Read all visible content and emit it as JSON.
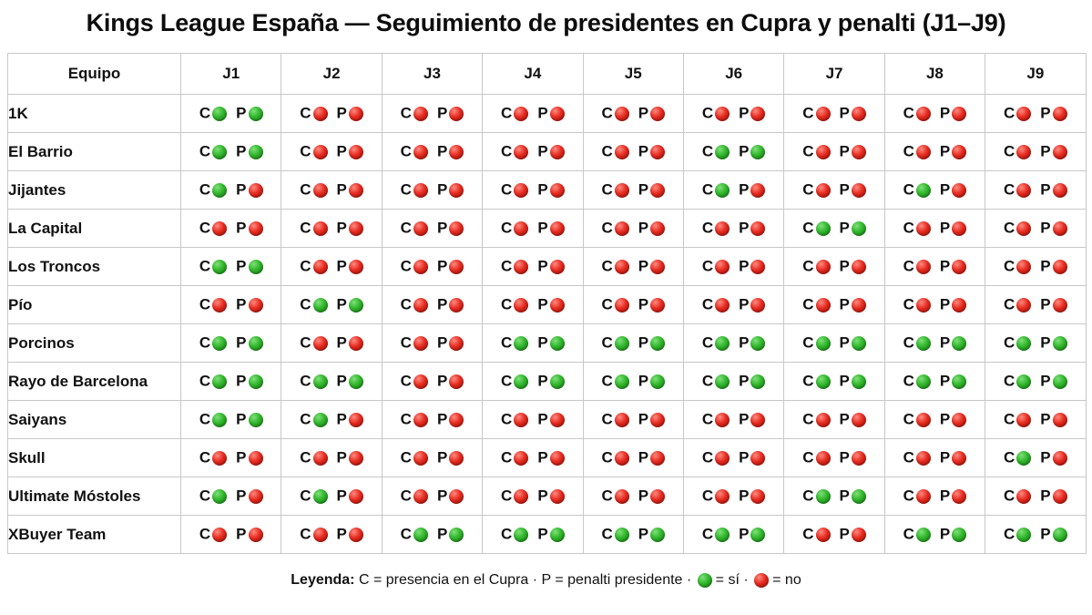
{
  "title": "Kings League España — Seguimiento de presidentes en Cupra y penalti (J1–J9)",
  "table": {
    "team_header": "Equipo",
    "rounds": [
      "J1",
      "J2",
      "J3",
      "J4",
      "J5",
      "J6",
      "J7",
      "J8",
      "J9"
    ],
    "cupra_letter": "C",
    "penalty_letter": "P",
    "rows": [
      {
        "team": "1K",
        "c": [
          1,
          0,
          0,
          0,
          0,
          0,
          0,
          0,
          0
        ],
        "p": [
          1,
          0,
          0,
          0,
          0,
          0,
          0,
          0,
          0
        ]
      },
      {
        "team": "El Barrio",
        "c": [
          1,
          0,
          0,
          0,
          0,
          1,
          0,
          0,
          0
        ],
        "p": [
          1,
          0,
          0,
          0,
          0,
          1,
          0,
          0,
          0
        ]
      },
      {
        "team": "Jijantes",
        "c": [
          1,
          0,
          0,
          0,
          0,
          1,
          0,
          1,
          0
        ],
        "p": [
          0,
          0,
          0,
          0,
          0,
          0,
          0,
          0,
          0
        ]
      },
      {
        "team": "La Capital",
        "c": [
          0,
          0,
          0,
          0,
          0,
          0,
          1,
          0,
          0
        ],
        "p": [
          0,
          0,
          0,
          0,
          0,
          0,
          1,
          0,
          0
        ]
      },
      {
        "team": "Los Troncos",
        "c": [
          1,
          0,
          0,
          0,
          0,
          0,
          0,
          0,
          0
        ],
        "p": [
          1,
          0,
          0,
          0,
          0,
          0,
          0,
          0,
          0
        ]
      },
      {
        "team": "Pío",
        "c": [
          0,
          1,
          0,
          0,
          0,
          0,
          0,
          0,
          0
        ],
        "p": [
          0,
          1,
          0,
          0,
          0,
          0,
          0,
          0,
          0
        ]
      },
      {
        "team": "Porcinos",
        "c": [
          1,
          0,
          0,
          1,
          1,
          1,
          1,
          1,
          1
        ],
        "p": [
          1,
          0,
          0,
          1,
          1,
          1,
          1,
          1,
          1
        ]
      },
      {
        "team": "Rayo de Barcelona",
        "c": [
          1,
          1,
          0,
          1,
          1,
          1,
          1,
          1,
          1
        ],
        "p": [
          1,
          1,
          0,
          1,
          1,
          1,
          1,
          1,
          1
        ]
      },
      {
        "team": "Saiyans",
        "c": [
          1,
          1,
          0,
          0,
          0,
          0,
          0,
          0,
          0
        ],
        "p": [
          1,
          0,
          0,
          0,
          0,
          0,
          0,
          0,
          0
        ]
      },
      {
        "team": "Skull",
        "c": [
          0,
          0,
          0,
          0,
          0,
          0,
          0,
          0,
          1
        ],
        "p": [
          0,
          0,
          0,
          0,
          0,
          0,
          0,
          0,
          0
        ]
      },
      {
        "team": "Ultimate Móstoles",
        "c": [
          1,
          1,
          0,
          0,
          0,
          0,
          1,
          0,
          0
        ],
        "p": [
          0,
          0,
          0,
          0,
          0,
          0,
          1,
          0,
          0
        ]
      },
      {
        "team": "XBuyer Team",
        "c": [
          0,
          0,
          1,
          1,
          1,
          1,
          0,
          1,
          1
        ],
        "p": [
          0,
          0,
          1,
          1,
          1,
          1,
          0,
          1,
          1
        ]
      }
    ]
  },
  "legend": {
    "heading": "Leyenda:",
    "c_text": " C = presencia en el Cupra · P = penalti presidente · ",
    "yes_text": "= sí ·",
    "no_text": "= no"
  },
  "colors": {
    "yes": "#2fb52a",
    "no": "#e52a1f",
    "border": "#c8c8c8"
  }
}
